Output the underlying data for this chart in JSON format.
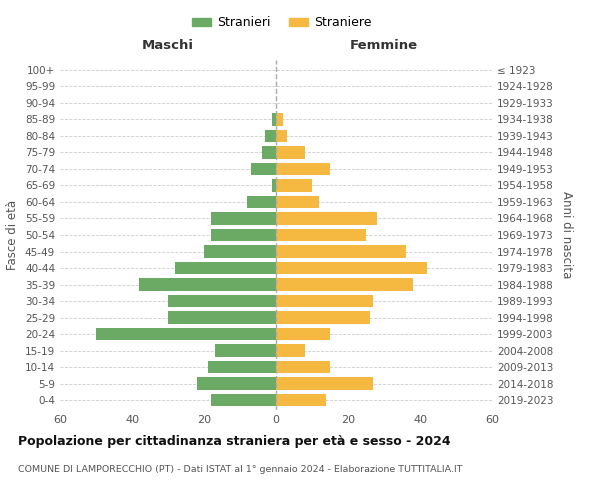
{
  "age_groups": [
    "0-4",
    "5-9",
    "10-14",
    "15-19",
    "20-24",
    "25-29",
    "30-34",
    "35-39",
    "40-44",
    "45-49",
    "50-54",
    "55-59",
    "60-64",
    "65-69",
    "70-74",
    "75-79",
    "80-84",
    "85-89",
    "90-94",
    "95-99",
    "100+"
  ],
  "birth_years": [
    "2019-2023",
    "2014-2018",
    "2009-2013",
    "2004-2008",
    "1999-2003",
    "1994-1998",
    "1989-1993",
    "1984-1988",
    "1979-1983",
    "1974-1978",
    "1969-1973",
    "1964-1968",
    "1959-1963",
    "1954-1958",
    "1949-1953",
    "1944-1948",
    "1939-1943",
    "1934-1938",
    "1929-1933",
    "1924-1928",
    "≤ 1923"
  ],
  "males": [
    18,
    22,
    19,
    17,
    50,
    30,
    30,
    38,
    28,
    20,
    18,
    18,
    8,
    1,
    7,
    4,
    3,
    1,
    0,
    0,
    0
  ],
  "females": [
    14,
    27,
    15,
    8,
    15,
    26,
    27,
    38,
    42,
    36,
    25,
    28,
    12,
    10,
    15,
    8,
    3,
    2,
    0,
    0,
    0
  ],
  "male_color": "#6aaa64",
  "female_color": "#f5b942",
  "background_color": "#ffffff",
  "grid_color": "#cccccc",
  "title": "Popolazione per cittadinanza straniera per età e sesso - 2024",
  "subtitle": "COMUNE DI LAMPORECCHIO (PT) - Dati ISTAT al 1° gennaio 2024 - Elaborazione TUTTITALIA.IT",
  "xlabel_left": "Maschi",
  "xlabel_right": "Femmine",
  "ylabel_left": "Fasce di età",
  "ylabel_right": "Anni di nascita",
  "legend_male": "Stranieri",
  "legend_female": "Straniere",
  "xlim": 60
}
